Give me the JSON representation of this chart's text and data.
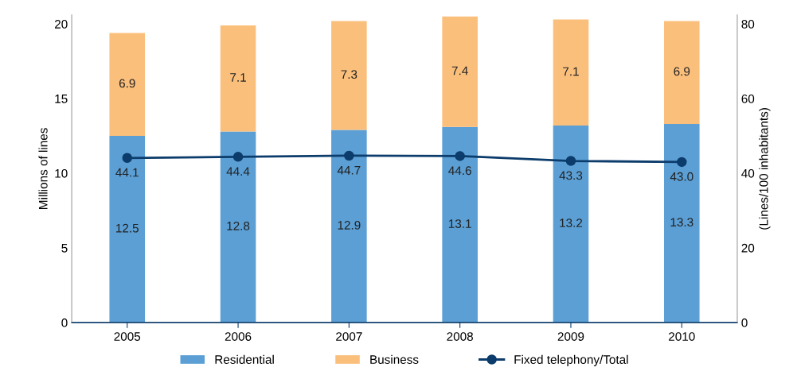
{
  "chart_data": {
    "type": "bar",
    "stacked": true,
    "ylabel": "Millions of lines",
    "y2label": "(Lines/100 inhabitants)",
    "categories": [
      "2005",
      "2006",
      "2007",
      "2008",
      "2009",
      "2010"
    ],
    "series": [
      {
        "name": "Residential",
        "color": "#5b9fd5",
        "values": [
          12.5,
          12.8,
          12.9,
          13.1,
          13.2,
          13.3
        ]
      },
      {
        "name": "Business",
        "color": "#fbbf7c",
        "values": [
          6.9,
          7.1,
          7.3,
          7.4,
          7.1,
          6.9
        ]
      },
      {
        "name": "Fixed telephony/Total",
        "type": "line",
        "axis": "y2",
        "color": "#0c3c6b",
        "marker": "circle",
        "values": [
          44.1,
          44.4,
          44.7,
          44.6,
          43.3,
          43.0
        ],
        "value_labels": [
          "44.1",
          "44.4",
          "44.7",
          "44.6",
          "43.3",
          "43.0"
        ]
      }
    ],
    "ylim": [
      0,
      20.6
    ],
    "yticks": [
      0,
      5,
      10,
      15,
      20
    ],
    "y2lim": [
      0,
      82.4
    ],
    "y2ticks": [
      0,
      20,
      40,
      60,
      80
    ],
    "data_labels": true,
    "grid": false,
    "legend": "bottom"
  }
}
